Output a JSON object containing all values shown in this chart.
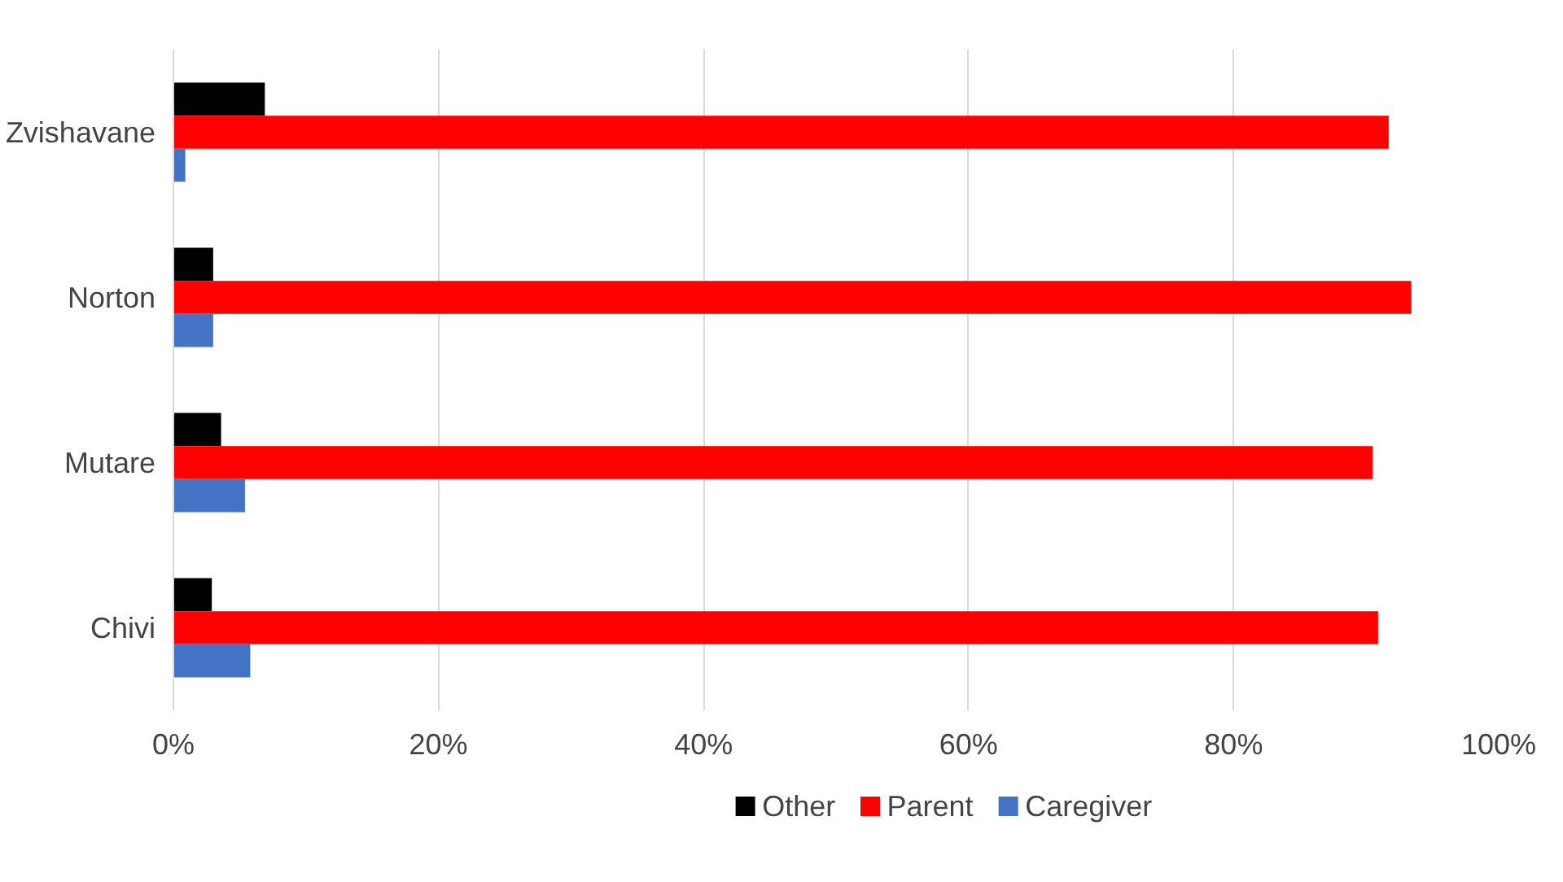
{
  "chart_data": {
    "type": "bar",
    "orientation": "horizontal",
    "categories": [
      "Zvishavane",
      "Norton",
      "Mutare",
      "Chivi"
    ],
    "series": [
      {
        "name": "Other",
        "color": "#000000",
        "values": [
          6.9,
          3.0,
          3.6,
          2.9
        ]
      },
      {
        "name": "Parent",
        "color": "#ff0000",
        "values": [
          91.7,
          93.4,
          90.5,
          90.9
        ]
      },
      {
        "name": "Caregiver",
        "color": "#4472c4",
        "values": [
          0.9,
          3.0,
          5.4,
          5.8
        ]
      }
    ],
    "xlim": [
      0,
      100
    ],
    "xticks": [
      {
        "value": 0,
        "label": "0%"
      },
      {
        "value": 20,
        "label": "20%"
      },
      {
        "value": 40,
        "label": "40%"
      },
      {
        "value": 60,
        "label": "60%"
      },
      {
        "value": 80,
        "label": "80%"
      },
      {
        "value": 100,
        "label": "100%"
      }
    ],
    "grid": "x",
    "legend": "bottom"
  }
}
